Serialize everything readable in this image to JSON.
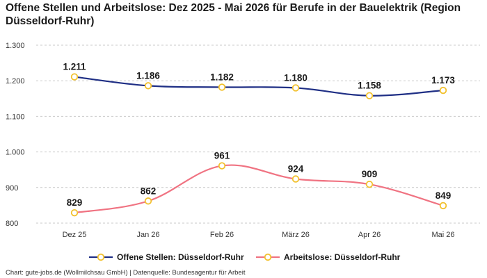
{
  "title": "Offene Stellen und Arbeitslose: Dez 2025 - Mai 2026 für Berufe in der Bauelektrik (Region Düsseldorf-Ruhr)",
  "footer": "Chart: gute-jobs.de (Wollmilchsau GmbH) | Datenquelle: Bundesagentur für Arbeit",
  "chart_data": {
    "type": "line",
    "categories": [
      "Dez 25",
      "Jan 26",
      "Feb 26",
      "März 26",
      "Apr 26",
      "Mai 26"
    ],
    "y_ticks": [
      "800",
      "900",
      "1.000",
      "1.100",
      "1.200",
      "1.300"
    ],
    "y_tick_values": [
      800,
      900,
      1000,
      1100,
      1200,
      1300
    ],
    "ylim": [
      800,
      1300
    ],
    "grid": true,
    "legend_position": "bottom-center",
    "series": [
      {
        "name": "Offene Stellen: Düsseldorf-Ruhr",
        "values": [
          1211,
          1186,
          1182,
          1180,
          1158,
          1173
        ],
        "labels": [
          "1.211",
          "1.186",
          "1.182",
          "1.180",
          "1.158",
          "1.173"
        ],
        "color": "#1f2f85",
        "marker_color": "#f2c12e"
      },
      {
        "name": "Arbeitslose: Düsseldorf-Ruhr",
        "values": [
          829,
          862,
          961,
          924,
          909,
          849
        ],
        "labels": [
          "829",
          "862",
          "961",
          "924",
          "909",
          "849"
        ],
        "color": "#f07382",
        "marker_color": "#f2c12e"
      }
    ]
  }
}
